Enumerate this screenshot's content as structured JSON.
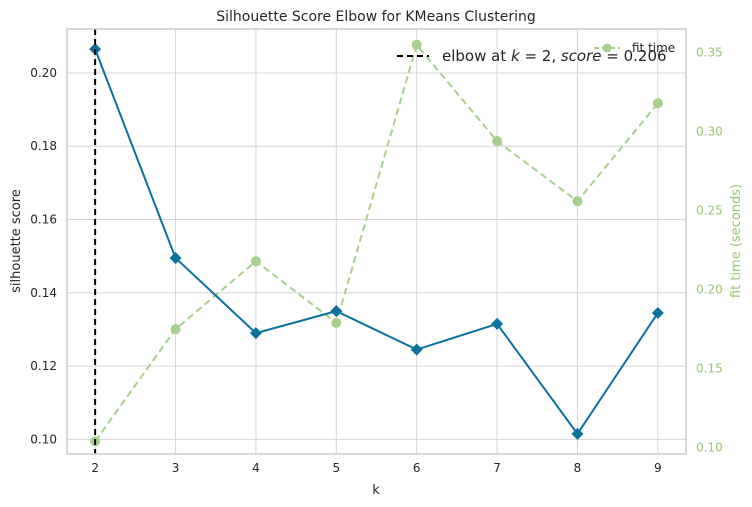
{
  "chart_data": {
    "type": "line",
    "title": "Silhouette Score Elbow for KMeans Clustering",
    "xlabel": "k",
    "ylabel": "silhouette score",
    "y2label": "fit time (seconds)",
    "x": [
      2,
      3,
      4,
      5,
      6,
      7,
      8,
      9
    ],
    "xlim": [
      1.65,
      9.35
    ],
    "ylim": [
      0.096,
      0.212
    ],
    "y2lim": [
      0.096,
      0.365
    ],
    "yticks": [
      "0.10",
      "0.12",
      "0.14",
      "0.16",
      "0.18",
      "0.20"
    ],
    "y2ticks": [
      "0.10",
      "0.15",
      "0.20",
      "0.25",
      "0.30",
      "0.35"
    ],
    "grid": true,
    "colors": {
      "score": "#0b72a0",
      "fit_time": "#a8d08d",
      "fit_time_text": "#97c770",
      "elbow": "#000000",
      "grid": "#d6d6d6"
    },
    "series": [
      {
        "name": "silhouette score",
        "axis": "left",
        "marker": "diamond",
        "values": [
          0.2065,
          0.1495,
          0.129,
          0.135,
          0.1245,
          0.1315,
          0.1015,
          0.1345
        ]
      },
      {
        "name": "fit time",
        "axis": "right",
        "marker": "circle",
        "dashed": true,
        "values": [
          0.104,
          0.175,
          0.218,
          0.179,
          0.355,
          0.294,
          0.256,
          0.318
        ]
      }
    ],
    "elbow": {
      "k": 2,
      "score": 0.206
    },
    "legend": {
      "elbow_prefix": "elbow at ",
      "elbow_k": "k",
      "elbow_mid": " = 2, ",
      "elbow_score": "score",
      "elbow_suffix": " = 0.206",
      "fit_time_label": "fit time",
      "placement": "top-right"
    }
  }
}
